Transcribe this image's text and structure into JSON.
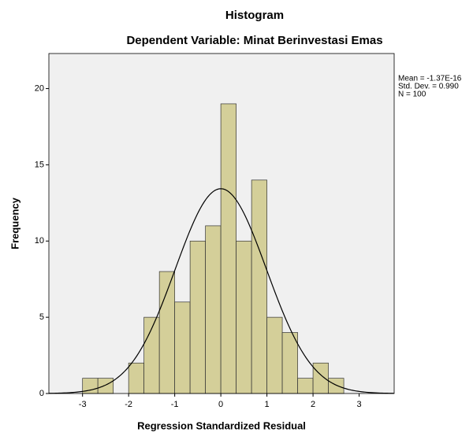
{
  "chart_data": {
    "type": "histogram",
    "title": "Histogram",
    "subtitle": "Dependent Variable: Minat Berinvestasi Emas",
    "xlabel": "Regression Standardized Residual",
    "ylabel": "Frequency",
    "bins": [
      -3,
      -2.667,
      -2.333,
      -2,
      -1.667,
      -1.333,
      -1,
      -0.667,
      -0.333,
      0,
      0.333,
      0.667,
      1,
      1.333,
      1.667,
      2,
      2.333,
      2.667
    ],
    "values": [
      1,
      1,
      0,
      2,
      5,
      8,
      6,
      10,
      11,
      19,
      10,
      14,
      5,
      4,
      1,
      2,
      1
    ],
    "color": "#d4cf99",
    "xlim": [
      -3.73,
      3.76
    ],
    "ylim": [
      0,
      22.3
    ],
    "xticks": [
      -3,
      -2,
      -1,
      0,
      1,
      2,
      3
    ],
    "yticks": [
      0,
      5,
      10,
      15,
      20
    ],
    "mean": {
      "value": -1.37e-16,
      "label": "Mean = -1.37E-16"
    },
    "std": {
      "value": 0.99,
      "label": "Std. Dev. = 0.990"
    },
    "n": {
      "value": 100,
      "label": "N = 100"
    },
    "curve": true
  }
}
